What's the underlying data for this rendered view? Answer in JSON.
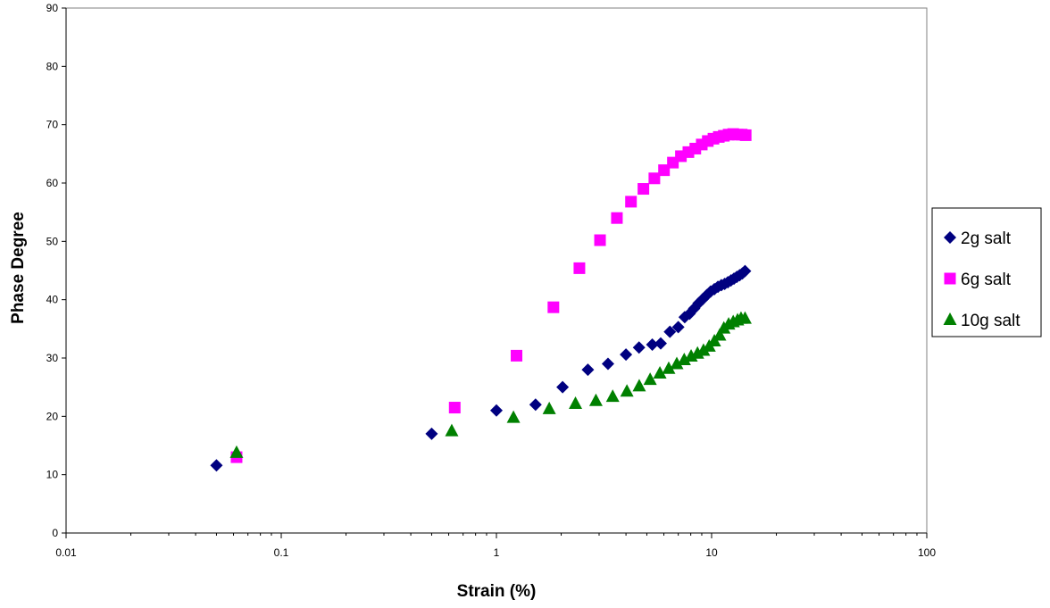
{
  "chart_data": {
    "type": "scatter",
    "title": "",
    "xlabel": "Strain (%)",
    "ylabel": "Phase Degree",
    "xscale": "log",
    "xlim": [
      0.01,
      100
    ],
    "ylim": [
      0,
      90
    ],
    "x_ticks": [
      "0.01",
      "0.1",
      "1",
      "10",
      "100"
    ],
    "y_ticks": [
      "0",
      "10",
      "20",
      "30",
      "40",
      "50",
      "60",
      "70",
      "80",
      "90"
    ],
    "grid": false,
    "legend_position": "right",
    "series": [
      {
        "name": "2g salt",
        "marker": "diamond",
        "color": "#000080",
        "x": [
          0.05,
          0.5,
          1.0,
          1.52,
          2.03,
          2.66,
          3.3,
          4.0,
          4.6,
          5.3,
          5.8,
          6.4,
          7.0,
          7.5,
          7.9,
          8.3,
          8.7,
          9.1,
          9.5,
          9.9,
          10.3,
          10.7,
          11.1,
          11.5,
          11.9,
          12.3,
          12.7,
          13.1,
          13.5,
          13.9,
          14.3
        ],
        "y": [
          11.6,
          17.0,
          21.0,
          22.0,
          25.0,
          28.0,
          29.0,
          30.6,
          31.8,
          32.3,
          32.5,
          34.5,
          35.3,
          37.0,
          37.6,
          38.5,
          39.4,
          40.1,
          40.8,
          41.4,
          41.8,
          42.2,
          42.5,
          42.7,
          43.0,
          43.3,
          43.6,
          43.9,
          44.2,
          44.5,
          44.9
        ]
      },
      {
        "name": "6g salt",
        "marker": "square",
        "color": "#ff00ff",
        "x": [
          0.062,
          0.64,
          1.24,
          1.84,
          2.43,
          3.03,
          3.63,
          4.22,
          4.82,
          5.42,
          6.01,
          6.61,
          7.2,
          7.8,
          8.4,
          9.0,
          9.6,
          10.2,
          10.8,
          11.4,
          12.0,
          12.6,
          13.2,
          13.8,
          14.4
        ],
        "y": [
          13.0,
          21.5,
          30.4,
          38.7,
          45.4,
          50.2,
          54.0,
          56.8,
          59.0,
          60.8,
          62.2,
          63.5,
          64.6,
          65.3,
          65.9,
          66.6,
          67.2,
          67.6,
          67.9,
          68.1,
          68.3,
          68.4,
          68.3,
          68.3,
          68.2
        ]
      },
      {
        "name": "10g salt",
        "marker": "triangle",
        "color": "#008000",
        "x": [
          0.062,
          0.62,
          1.2,
          1.76,
          2.33,
          2.9,
          3.47,
          4.04,
          4.61,
          5.18,
          5.75,
          6.32,
          6.89,
          7.46,
          8.03,
          8.6,
          9.17,
          9.74,
          10.3,
          10.9,
          11.4,
          12.0,
          12.6,
          13.2,
          13.7,
          14.3
        ],
        "y": [
          13.8,
          17.5,
          19.8,
          21.3,
          22.2,
          22.7,
          23.4,
          24.3,
          25.2,
          26.3,
          27.4,
          28.2,
          29.0,
          29.7,
          30.3,
          30.8,
          31.3,
          32.0,
          32.9,
          33.9,
          35.1,
          35.8,
          36.2,
          36.5,
          36.8,
          36.8
        ]
      }
    ]
  }
}
